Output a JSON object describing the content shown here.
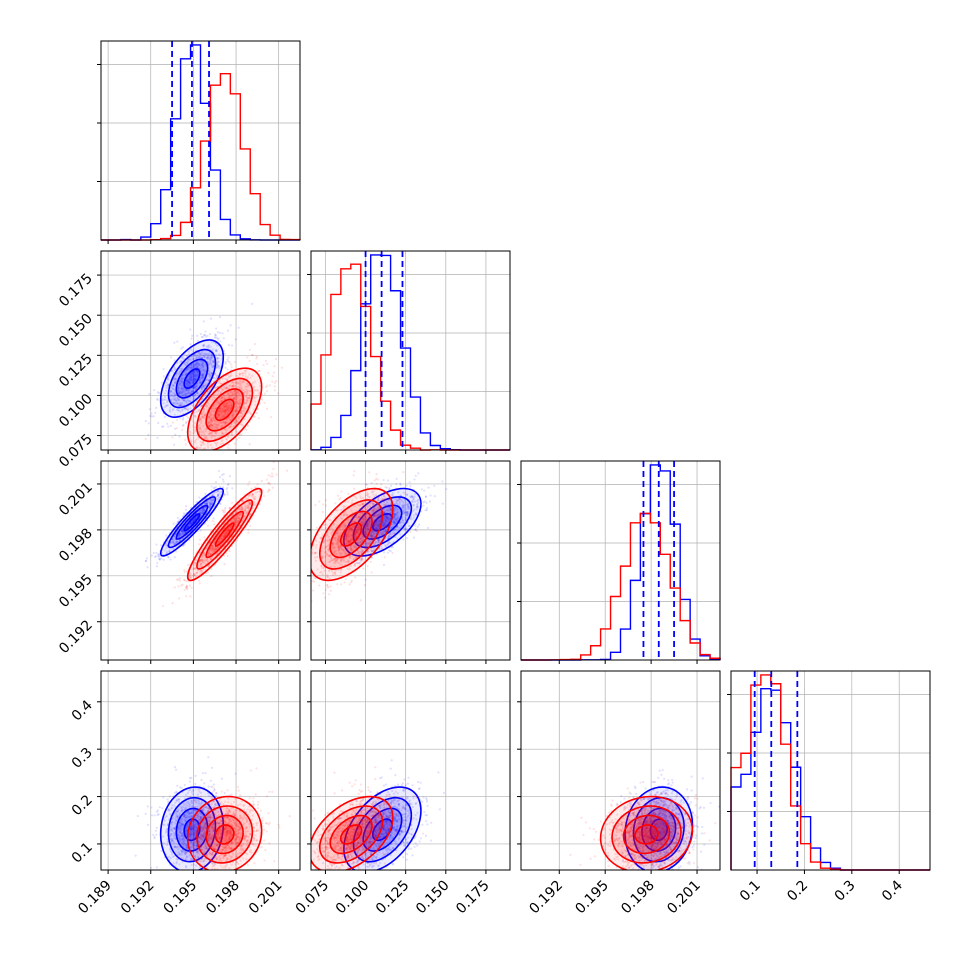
{
  "colors": {
    "blue": "#0000ff",
    "red": "#ff0000",
    "grid": "#b0b0b0",
    "axis": "#000000"
  },
  "chart_data": {
    "type": "corner",
    "parameters": 4,
    "grid": true,
    "series": [
      {
        "color": "#0000ff",
        "mean": [
          0.1949,
          0.1105,
          0.1985,
          0.13
        ],
        "std": [
          0.0011,
          0.012,
          0.0011,
          0.045
        ],
        "quantiles": [
          [
            0.1935,
            0.1949,
            0.1961
          ],
          [
            0.1,
            0.11,
            0.123
          ],
          [
            0.1975,
            0.1985,
            0.1995
          ],
          [
            0.095,
            0.13,
            0.185
          ]
        ]
      },
      {
        "color": "#ff0000",
        "mean": [
          0.1972,
          0.091,
          0.1977,
          0.12
        ],
        "std": [
          0.0013,
          0.013,
          0.0015,
          0.04
        ]
      }
    ],
    "correlations": {
      "blue": {
        "0-1": 0.55,
        "0-2": 0.92,
        "1-2": 0.55,
        "0-3": 0.1,
        "1-3": 0.45,
        "2-3": 0.1
      },
      "red": {
        "0-1": 0.55,
        "0-2": 0.92,
        "1-2": 0.55,
        "0-3": 0.1,
        "1-3": 0.45,
        "2-3": 0.1
      }
    },
    "axes": [
      {
        "range": [
          0.1885,
          0.2025
        ],
        "ticks": [
          0.189,
          0.192,
          0.195,
          0.198,
          0.201
        ],
        "tick_labels": [
          "0.189",
          "0.192",
          "0.195",
          "0.198",
          "0.201"
        ]
      },
      {
        "range": [
          0.066,
          0.19
        ],
        "ticks": [
          0.075,
          0.1,
          0.125,
          0.15,
          0.175
        ],
        "tick_labels": [
          "0.075",
          "0.100",
          "0.125",
          "0.150",
          "0.175"
        ]
      },
      {
        "range": [
          0.1895,
          0.2025
        ],
        "ticks": [
          0.192,
          0.195,
          0.198,
          0.201
        ],
        "tick_labels": [
          "0.192",
          "0.195",
          "0.198",
          "0.201"
        ]
      },
      {
        "range": [
          0.045,
          0.465
        ],
        "ticks": [
          0.1,
          0.2,
          0.3,
          0.4
        ],
        "tick_labels": [
          "0.1",
          "0.2",
          "0.3",
          "0.4"
        ]
      }
    ]
  }
}
